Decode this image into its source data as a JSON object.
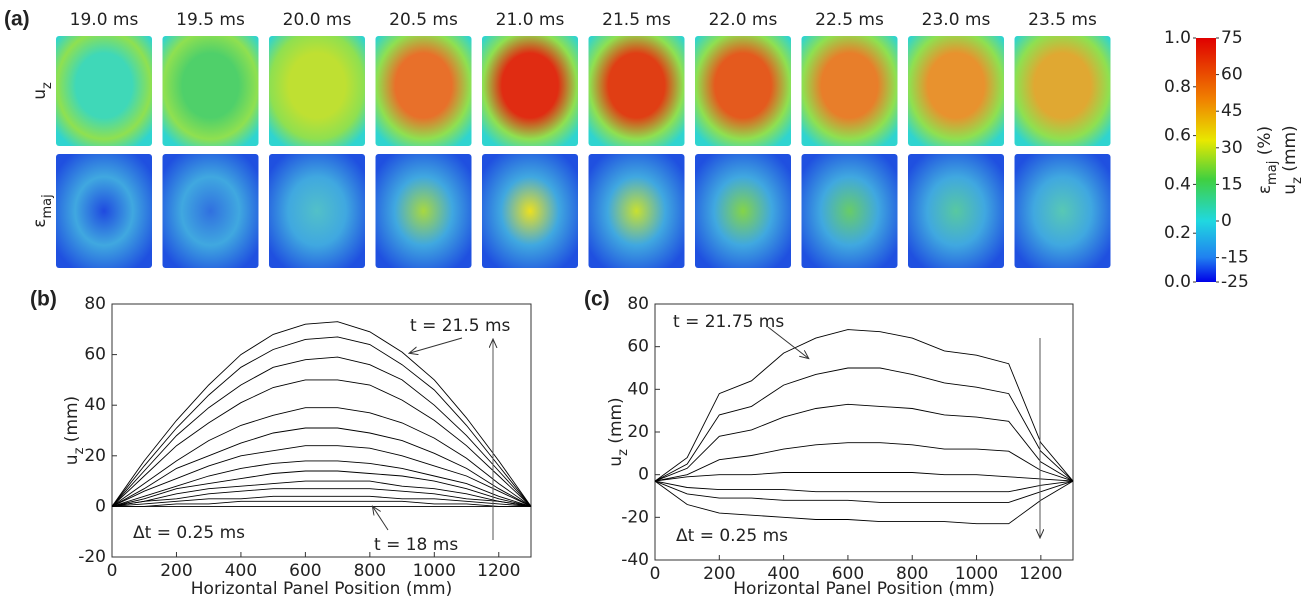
{
  "chart_data": [
    {
      "type": "heatmap-grid",
      "panel_label": "(a)",
      "frame_titles": [
        "19.0 ms",
        "19.5 ms",
        "20.0 ms",
        "20.5 ms",
        "21.0 ms",
        "21.5 ms",
        "22.0 ms",
        "22.5 ms",
        "23.0 ms",
        "23.5 ms"
      ],
      "row_labels": [
        {
          "text": "u",
          "sub": "z"
        },
        {
          "text": "ε",
          "sub": "maj"
        }
      ],
      "colorbar": {
        "left_label": {
          "text": "ε",
          "sub": "maj",
          "rest": " (%)"
        },
        "left_lim": [
          0,
          1
        ],
        "left_ticks": [
          {
            "value": 1,
            "label": "1.0"
          },
          {
            "value": 0.8,
            "label": "0.8"
          },
          {
            "value": 0.6,
            "label": "0.6"
          },
          {
            "value": 0.4,
            "label": "0.4"
          },
          {
            "value": 0.2,
            "label": "0.2"
          },
          {
            "value": 0,
            "label": "0.0"
          }
        ],
        "right_label": {
          "text": "u",
          "sub": "z",
          "rest": " (mm)"
        },
        "right_lim": [
          -25,
          75
        ],
        "right_ticks": [
          75,
          60,
          45,
          30,
          15,
          0,
          -15,
          -25
        ]
      }
    },
    {
      "type": "line",
      "panel_label": "(b)",
      "xlabel": "Horizontal Panel Position (mm)",
      "ylabel": {
        "text": "u",
        "sub": "z",
        "rest": " (mm)"
      },
      "xlim": [
        0,
        1300
      ],
      "xticks": [
        0,
        200,
        400,
        600,
        800,
        1000,
        1200
      ],
      "ylim": [
        -20,
        80
      ],
      "yticks": [
        -20,
        0,
        20,
        40,
        60,
        80
      ],
      "annotations": [
        "t = 21.5 ms",
        "t = 18 ms",
        "Δt = 0.25 ms"
      ],
      "x": [
        0,
        100,
        200,
        300,
        400,
        500,
        600,
        700,
        800,
        900,
        1000,
        1100,
        1200,
        1300
      ],
      "series": [
        {
          "color": "#000000",
          "values": [
            0,
            18,
            34,
            48,
            60,
            68,
            72,
            73,
            69,
            61,
            50,
            35,
            18,
            0
          ]
        },
        {
          "color": "#000000",
          "values": [
            0,
            16,
            31,
            44,
            55,
            62,
            66,
            67,
            64,
            56,
            46,
            32,
            16,
            0
          ]
        },
        {
          "color": "#000000",
          "values": [
            0,
            14,
            28,
            39,
            48,
            55,
            58,
            59,
            56,
            50,
            40,
            28,
            14,
            0
          ]
        },
        {
          "color": "#000000",
          "values": [
            0,
            12,
            24,
            33,
            41,
            47,
            50,
            50,
            48,
            42,
            34,
            24,
            12,
            0
          ]
        },
        {
          "color": "#000000",
          "values": [
            0,
            9,
            18,
            26,
            32,
            36,
            39,
            39,
            37,
            33,
            27,
            19,
            9,
            0
          ]
        },
        {
          "color": "#000000",
          "values": [
            0,
            7,
            15,
            20,
            25,
            29,
            31,
            31,
            29,
            26,
            21,
            15,
            7,
            0
          ]
        },
        {
          "color": "#000000",
          "values": [
            0,
            6,
            11,
            16,
            20,
            22,
            24,
            24,
            23,
            20,
            16,
            12,
            6,
            0
          ]
        },
        {
          "color": "#000000",
          "values": [
            0,
            4,
            8,
            12,
            15,
            17,
            18,
            18,
            17,
            15,
            12,
            9,
            4,
            0
          ]
        },
        {
          "color": "#000000",
          "values": [
            0,
            3,
            7,
            9,
            11,
            13,
            14,
            14,
            13,
            12,
            10,
            7,
            3,
            0
          ]
        },
        {
          "color": "#000000",
          "values": [
            0,
            2,
            5,
            7,
            8,
            9,
            10,
            10,
            10,
            8,
            7,
            5,
            2,
            0
          ]
        },
        {
          "color": "#000000",
          "values": [
            0,
            2,
            3,
            5,
            6,
            7,
            7,
            7,
            7,
            6,
            5,
            3,
            2,
            0
          ]
        },
        {
          "color": "#000000",
          "values": [
            0,
            1,
            2,
            3,
            3,
            4,
            4,
            4,
            4,
            3,
            3,
            2,
            1,
            0
          ]
        },
        {
          "color": "#000000",
          "values": [
            0,
            0,
            1,
            1,
            2,
            2,
            2,
            2,
            2,
            2,
            1,
            1,
            0,
            0
          ]
        },
        {
          "color": "#000000",
          "values": [
            0,
            0,
            0,
            0,
            0,
            0,
            0,
            0,
            0,
            0,
            0,
            0,
            0,
            0
          ]
        }
      ]
    },
    {
      "type": "line",
      "panel_label": "(c)",
      "xlabel": "Horizontal Panel Position (mm)",
      "ylabel": {
        "text": "u",
        "sub": "z",
        "rest": " (mm)"
      },
      "xlim": [
        0,
        1300
      ],
      "xticks": [
        0,
        200,
        400,
        600,
        800,
        1000,
        1200
      ],
      "ylim": [
        -40,
        80
      ],
      "yticks": [
        -40,
        -20,
        0,
        20,
        40,
        60,
        80
      ],
      "annotations": [
        "t = 21.75 ms",
        "Δt = 0.25 ms"
      ],
      "x": [
        0,
        100,
        200,
        300,
        400,
        500,
        600,
        700,
        800,
        900,
        1000,
        1100,
        1200,
        1300
      ],
      "series": [
        {
          "color": "#000000",
          "values": [
            -3,
            8,
            38,
            44,
            57,
            64,
            68,
            67,
            64,
            58,
            56,
            52,
            15,
            -3
          ]
        },
        {
          "color": "#000000",
          "values": [
            -3,
            5,
            28,
            32,
            42,
            47,
            50,
            50,
            47,
            43,
            41,
            38,
            11,
            -3
          ]
        },
        {
          "color": "#000000",
          "values": [
            -3,
            3,
            18,
            21,
            27,
            31,
            33,
            32,
            31,
            28,
            27,
            25,
            6,
            -3
          ]
        },
        {
          "color": "#000000",
          "values": [
            -3,
            0,
            7,
            9,
            12,
            14,
            15,
            15,
            14,
            12,
            12,
            11,
            2,
            -3
          ]
        },
        {
          "color": "#000000",
          "values": [
            -3,
            -1,
            0,
            0,
            1,
            1,
            1,
            1,
            1,
            0,
            0,
            -1,
            -2,
            -3
          ]
        },
        {
          "color": "#000000",
          "values": [
            -3,
            -6,
            -7,
            -7,
            -7,
            -8,
            -8,
            -8,
            -8,
            -8,
            -8,
            -8,
            -5,
            -3
          ]
        },
        {
          "color": "#000000",
          "values": [
            -3,
            -9,
            -11,
            -11,
            -12,
            -12,
            -12,
            -13,
            -13,
            -13,
            -13,
            -13,
            -8,
            -3
          ]
        },
        {
          "color": "#000000",
          "values": [
            -3,
            -14,
            -18,
            -19,
            -20,
            -21,
            -21,
            -22,
            -22,
            -22,
            -23,
            -23,
            -12,
            -3
          ]
        }
      ]
    }
  ]
}
